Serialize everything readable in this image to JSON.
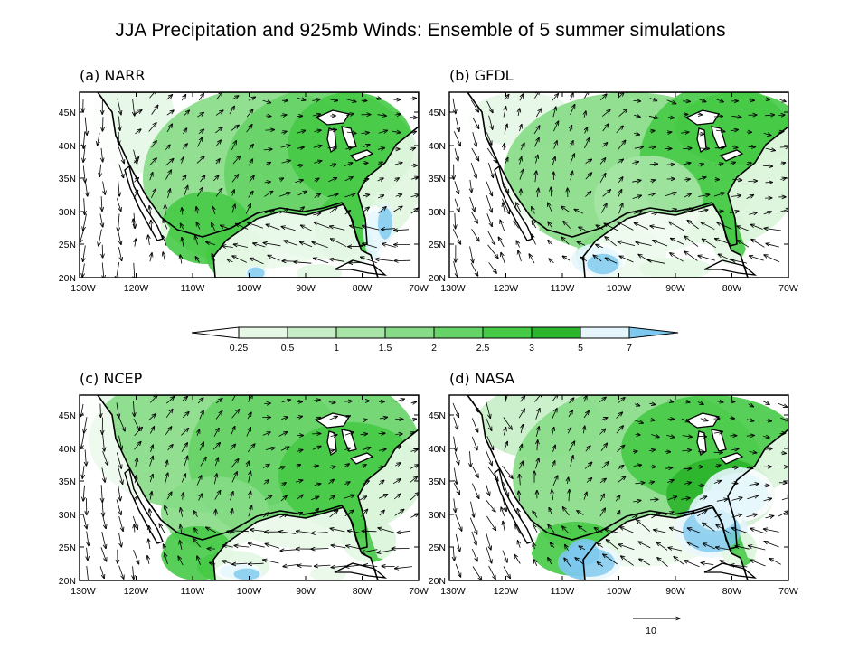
{
  "title": "JJA Precipitation and 925mb Winds: Ensemble of 5 summer simulations",
  "colorbar": {
    "labels": [
      "0.25",
      "0.5",
      "1",
      "1.5",
      "2",
      "2.5",
      "3",
      "5",
      "7"
    ],
    "colors": [
      "#ffffff",
      "#e6f7e6",
      "#c6eec6",
      "#a6e5a6",
      "#86dc86",
      "#66d366",
      "#46ca46",
      "#2cb42c",
      "#e4f6fc",
      "#7cc8ee"
    ]
  },
  "lat_ticks": [
    "20N",
    "25N",
    "30N",
    "35N",
    "40N",
    "45N"
  ],
  "lon_ticks": [
    "130W",
    "120W",
    "110W",
    "100W",
    "90W",
    "80W",
    "70W"
  ],
  "panels": [
    {
      "id": "a",
      "label": "(a)  NARR"
    },
    {
      "id": "b",
      "label": "(b)  GFDL"
    },
    {
      "id": "c",
      "label": "(c)  NCEP"
    },
    {
      "id": "d",
      "label": "(d)  NASA"
    }
  ],
  "reference_vector": {
    "label": "10"
  }
}
